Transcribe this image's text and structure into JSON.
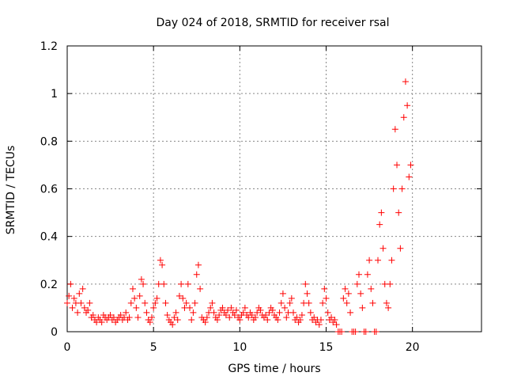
{
  "chart_data": {
    "type": "scatter",
    "title": "Day 024 of 2018, SRMTID for receiver rsal",
    "xlabel": "GPS time / hours",
    "ylabel": "SRMTID / TECUs",
    "xlim": [
      0,
      24
    ],
    "ylim": [
      0,
      1.2
    ],
    "x_ticks": [
      0,
      5,
      10,
      15,
      20
    ],
    "y_ticks": [
      0,
      0.2,
      0.4,
      0.6,
      0.8,
      1,
      1.2
    ],
    "y_tick_labels": [
      "0",
      "0.2",
      "0.4",
      "0.6",
      "0.8",
      "1",
      "1.2"
    ],
    "grid": true,
    "marker": "+",
    "color": "#ff0000",
    "series": [
      {
        "name": "SRMTID",
        "x": [
          0.0,
          0.1,
          0.2,
          0.3,
          0.4,
          0.5,
          0.6,
          0.7,
          0.8,
          0.9,
          1.0,
          1.1,
          1.2,
          1.3,
          1.4,
          1.5,
          1.6,
          1.7,
          1.8,
          1.9,
          2.0,
          2.1,
          2.2,
          2.3,
          2.4,
          2.5,
          2.6,
          2.7,
          2.8,
          2.9,
          3.0,
          3.1,
          3.2,
          3.3,
          3.4,
          3.5,
          3.6,
          3.7,
          3.8,
          3.9,
          4.0,
          4.1,
          4.2,
          4.3,
          4.4,
          4.5,
          4.6,
          4.7,
          4.8,
          4.9,
          5.0,
          5.1,
          5.2,
          5.3,
          5.4,
          5.5,
          5.6,
          5.7,
          5.8,
          5.9,
          6.0,
          6.1,
          6.2,
          6.3,
          6.4,
          6.5,
          6.6,
          6.7,
          6.8,
          6.9,
          7.0,
          7.1,
          7.2,
          7.3,
          7.4,
          7.5,
          7.6,
          7.7,
          7.8,
          7.9,
          8.0,
          8.1,
          8.2,
          8.3,
          8.4,
          8.5,
          8.6,
          8.7,
          8.8,
          8.9,
          9.0,
          9.1,
          9.2,
          9.3,
          9.4,
          9.5,
          9.6,
          9.7,
          9.8,
          9.9,
          10.0,
          10.1,
          10.2,
          10.3,
          10.4,
          10.5,
          10.6,
          10.7,
          10.8,
          10.9,
          11.0,
          11.1,
          11.2,
          11.3,
          11.4,
          11.5,
          11.6,
          11.7,
          11.8,
          11.9,
          12.0,
          12.1,
          12.2,
          12.3,
          12.4,
          12.5,
          12.6,
          12.7,
          12.8,
          12.9,
          13.0,
          13.1,
          13.2,
          13.3,
          13.4,
          13.5,
          13.6,
          13.7,
          13.8,
          13.9,
          14.0,
          14.1,
          14.2,
          14.3,
          14.4,
          14.5,
          14.6,
          14.7,
          14.8,
          14.9,
          15.0,
          15.1,
          15.2,
          15.3,
          15.4,
          15.5,
          15.6,
          15.7,
          15.8,
          15.9,
          16.0,
          16.1,
          16.2,
          16.3,
          16.4,
          16.5,
          16.6,
          16.7,
          16.8,
          16.9,
          17.0,
          17.1,
          17.2,
          17.3,
          17.4,
          17.5,
          17.6,
          17.7,
          17.8,
          17.9,
          18.0,
          18.1,
          18.2,
          18.3,
          18.4,
          18.5,
          18.6,
          18.7,
          18.8,
          18.9,
          19.0,
          19.1,
          19.2,
          19.3,
          19.4,
          19.5,
          19.6,
          19.7,
          19.8,
          19.9
        ],
        "y": [
          0.12,
          0.15,
          0.2,
          0.1,
          0.14,
          0.12,
          0.08,
          0.16,
          0.12,
          0.18,
          0.1,
          0.08,
          0.09,
          0.12,
          0.06,
          0.07,
          0.05,
          0.04,
          0.06,
          0.05,
          0.04,
          0.07,
          0.06,
          0.05,
          0.06,
          0.07,
          0.05,
          0.06,
          0.04,
          0.05,
          0.06,
          0.07,
          0.05,
          0.06,
          0.08,
          0.05,
          0.06,
          0.12,
          0.18,
          0.14,
          0.1,
          0.06,
          0.15,
          0.22,
          0.2,
          0.12,
          0.08,
          0.05,
          0.04,
          0.06,
          0.1,
          0.12,
          0.14,
          0.2,
          0.3,
          0.28,
          0.2,
          0.12,
          0.07,
          0.05,
          0.04,
          0.03,
          0.06,
          0.08,
          0.05,
          0.15,
          0.2,
          0.14,
          0.1,
          0.12,
          0.2,
          0.1,
          0.05,
          0.08,
          0.12,
          0.24,
          0.28,
          0.18,
          0.06,
          0.05,
          0.04,
          0.06,
          0.08,
          0.1,
          0.12,
          0.08,
          0.06,
          0.05,
          0.07,
          0.09,
          0.1,
          0.08,
          0.07,
          0.09,
          0.06,
          0.1,
          0.08,
          0.07,
          0.09,
          0.06,
          0.05,
          0.07,
          0.08,
          0.1,
          0.07,
          0.06,
          0.08,
          0.07,
          0.05,
          0.06,
          0.08,
          0.1,
          0.09,
          0.07,
          0.06,
          0.07,
          0.05,
          0.08,
          0.1,
          0.09,
          0.07,
          0.06,
          0.05,
          0.08,
          0.12,
          0.16,
          0.1,
          0.06,
          0.08,
          0.12,
          0.14,
          0.08,
          0.05,
          0.06,
          0.04,
          0.05,
          0.07,
          0.12,
          0.2,
          0.16,
          0.12,
          0.08,
          0.05,
          0.06,
          0.04,
          0.05,
          0.03,
          0.05,
          0.12,
          0.18,
          0.14,
          0.08,
          0.05,
          0.06,
          0.04,
          0.05,
          0.03,
          0.0,
          0.0,
          0.0,
          0.14,
          0.18,
          0.12,
          0.16,
          0.08,
          0.0,
          0.0,
          0.0,
          0.2,
          0.24,
          0.16,
          0.1,
          0.0,
          0.0,
          0.24,
          0.3,
          0.18,
          0.12,
          0.0,
          0.0,
          0.3,
          0.45,
          0.5,
          0.35,
          0.2,
          0.12,
          0.1,
          0.2,
          0.3,
          0.6,
          0.85,
          0.7,
          0.5,
          0.35,
          0.6,
          0.9,
          1.05,
          0.95,
          0.65,
          0.7
        ]
      }
    ]
  }
}
